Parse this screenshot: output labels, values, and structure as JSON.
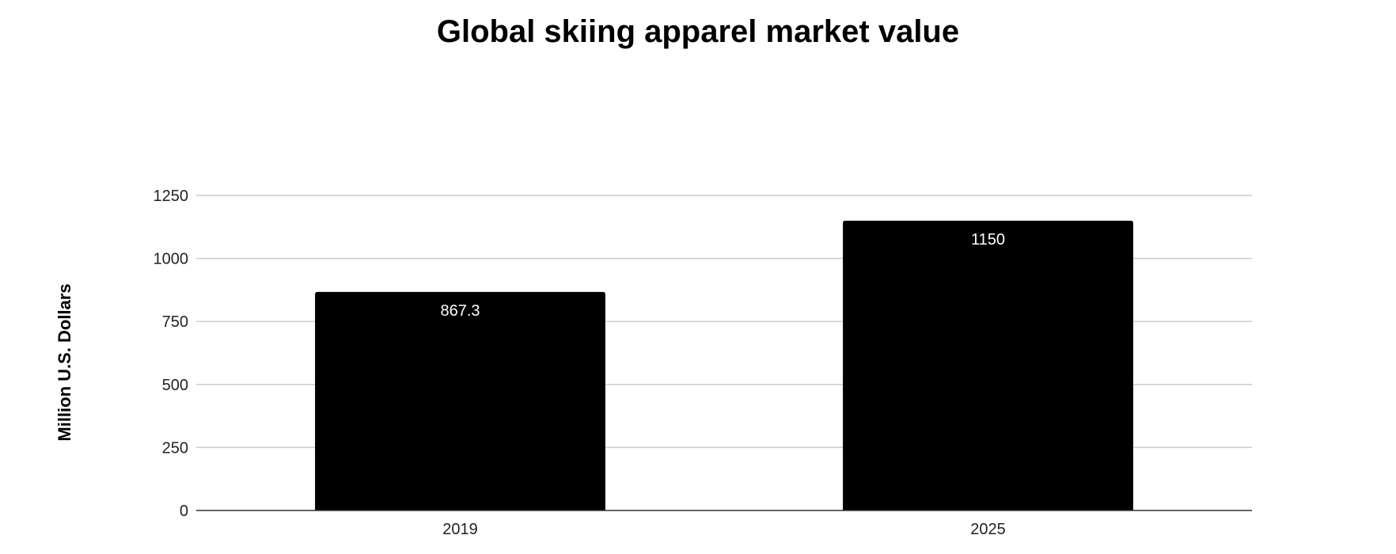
{
  "chart_data": {
    "type": "bar",
    "title": "Global skiing apparel market value",
    "xlabel": "",
    "ylabel": "Million U.S. Dollars",
    "categories": [
      "2019",
      "2025"
    ],
    "series": [
      {
        "values": [
          867.3,
          1150
        ],
        "data_labels": [
          "867.3",
          "1150"
        ],
        "color": "#000000"
      }
    ],
    "ylim": [
      0,
      1250
    ],
    "yticks": [
      0,
      250,
      500,
      750,
      1000,
      1250
    ],
    "ytick_labels": [
      "0",
      "250",
      "500",
      "750",
      "1000",
      "1250"
    ],
    "grid": true,
    "legend": "none",
    "colors": {
      "bar": "#000000",
      "data_label": "#ffffff",
      "grid": "#cccccc",
      "text": "#000000"
    }
  }
}
